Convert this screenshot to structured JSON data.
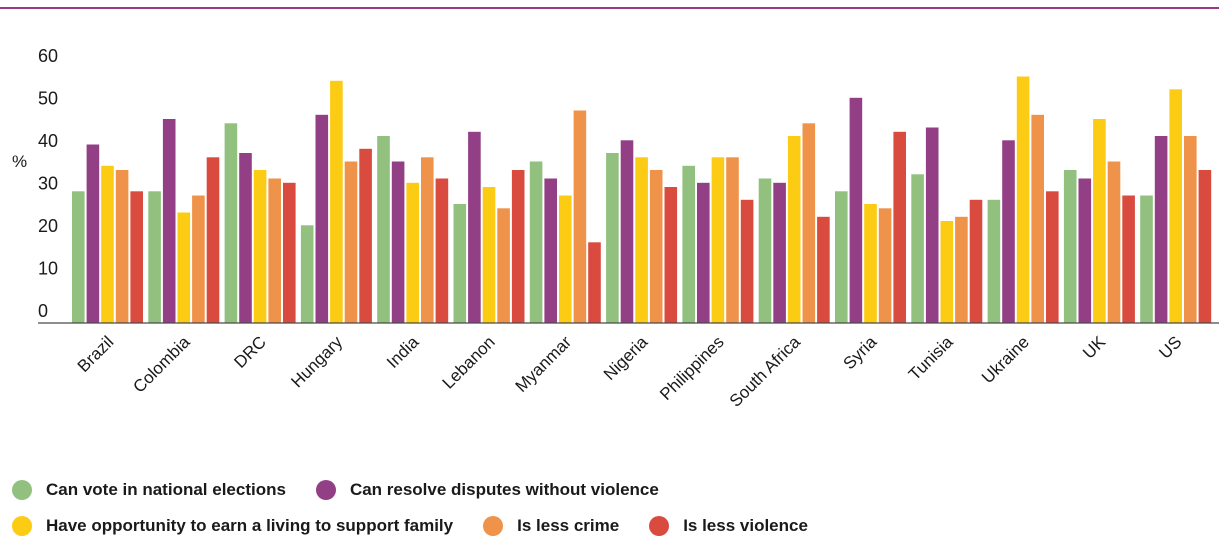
{
  "chart_data": {
    "type": "bar",
    "ylabel": "%",
    "ylim": [
      0,
      60
    ],
    "yticks": [
      0,
      10,
      20,
      30,
      40,
      50,
      60
    ],
    "categories": [
      "Brazil",
      "Colombia",
      "DRC",
      "Hungary",
      "India",
      "Lebanon",
      "Myanmar",
      "Nigeria",
      "Philippines",
      "South Africa",
      "Syria",
      "Tunisia",
      "Ukraine",
      "UK",
      "US"
    ],
    "series": [
      {
        "name": "Can vote in national elections",
        "color": "#92c07f",
        "values": [
          31,
          31,
          47,
          23,
          44,
          28,
          38,
          40,
          37,
          34,
          31,
          35,
          29,
          36,
          30
        ]
      },
      {
        "name": "Can resolve disputes without violence",
        "color": "#923f86",
        "values": [
          42,
          48,
          40,
          49,
          38,
          45,
          34,
          43,
          33,
          33,
          53,
          46,
          43,
          34,
          44
        ]
      },
      {
        "name": "Have opportunity to earn a living to support family",
        "color": "#fccb14",
        "values": [
          37,
          26,
          36,
          57,
          33,
          32,
          30,
          39,
          39,
          44,
          28,
          24,
          58,
          48,
          55
        ]
      },
      {
        "name": "Is less crime",
        "color": "#f0934a",
        "values": [
          36,
          30,
          34,
          38,
          39,
          27,
          50,
          36,
          39,
          47,
          27,
          25,
          49,
          38,
          44
        ]
      },
      {
        "name": "Is less violence",
        "color": "#d94b3f",
        "values": [
          31,
          39,
          33,
          41,
          34,
          36,
          19,
          32,
          29,
          25,
          45,
          29,
          31,
          30,
          36
        ]
      }
    ],
    "grid": false,
    "legend_position": "bottom"
  },
  "colors": {
    "rule": "#9b3b85",
    "axis": "#4a4a4a",
    "text": "#1a1a1a"
  }
}
